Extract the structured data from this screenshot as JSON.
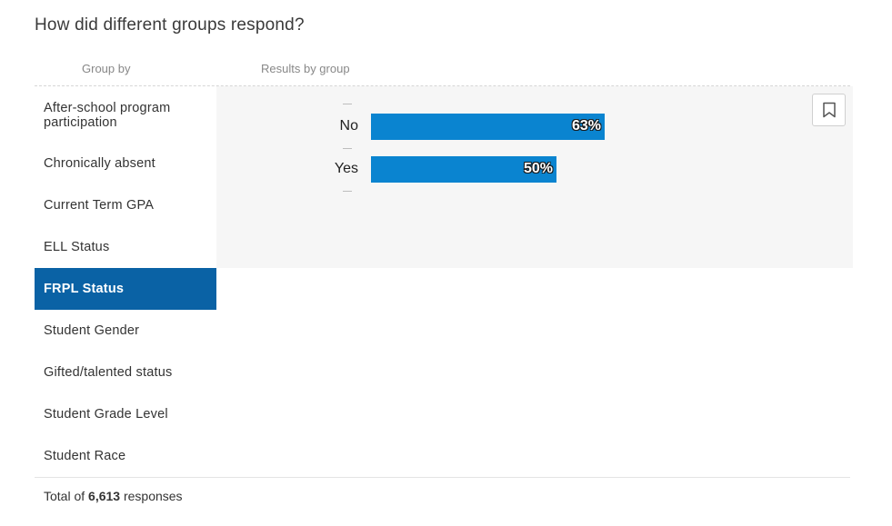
{
  "title": "How did different groups respond?",
  "columns": {
    "group_by": "Group by",
    "results_by_group": "Results by group"
  },
  "sidebar": {
    "items": [
      {
        "label": "After-school program participation",
        "active": false
      },
      {
        "label": "Chronically absent",
        "active": false
      },
      {
        "label": "Current Term GPA",
        "active": false
      },
      {
        "label": "ELL Status",
        "active": false
      },
      {
        "label": "FRPL Status",
        "active": true
      },
      {
        "label": "Student Gender",
        "active": false
      },
      {
        "label": "Gifted/talented status",
        "active": false
      },
      {
        "label": "Student Grade Level",
        "active": false
      },
      {
        "label": "Student Race",
        "active": false
      }
    ]
  },
  "chart_data": {
    "type": "bar",
    "orientation": "horizontal",
    "categories": [
      "No",
      "Yes"
    ],
    "values": [
      63,
      50
    ],
    "value_labels": [
      "63%",
      "50%"
    ],
    "unit": "%",
    "xlim": [
      0,
      100
    ],
    "bar_color": "#0a84d0"
  },
  "icons": {
    "bookmark": "bookmark-icon"
  },
  "footer": {
    "prefix": "Total of",
    "count": "6,613",
    "suffix": "responses"
  },
  "colors": {
    "active_item_bg": "#0a62a5",
    "panel_bg": "#f6f6f6"
  }
}
